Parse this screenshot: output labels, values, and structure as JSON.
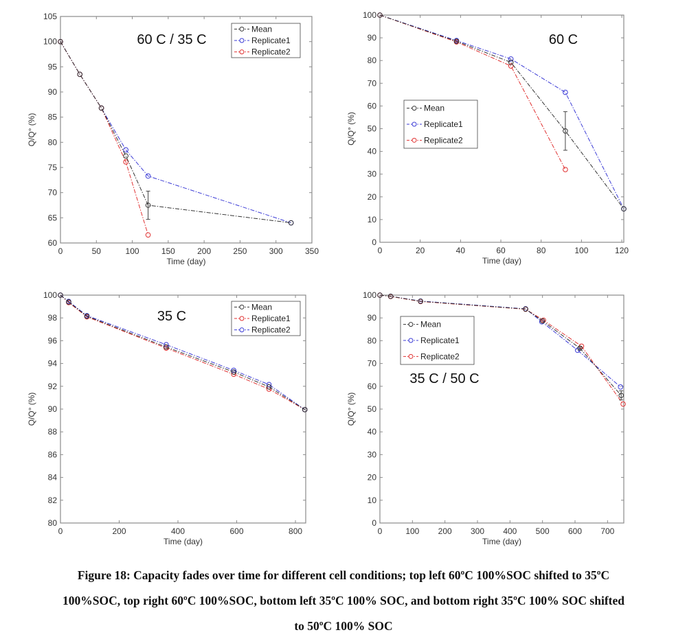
{
  "chart_data": [
    {
      "type": "line",
      "panel": "top-left",
      "title": "60 C / 35 C",
      "xlabel": "Time (day)",
      "ylabel": "Q/Q° (%)",
      "xlim": [
        0,
        350
      ],
      "ylim": [
        60,
        105
      ],
      "xticks": [
        0,
        50,
        100,
        150,
        200,
        250,
        300,
        350
      ],
      "yticks": [
        60,
        65,
        70,
        75,
        80,
        85,
        90,
        95,
        100,
        105
      ],
      "legend_position": "top-right",
      "series": [
        {
          "name": "Mean",
          "color": "#333333",
          "x": [
            0,
            27,
            57,
            91,
            122,
            321
          ],
          "y": [
            100,
            93.5,
            86.8,
            77.3,
            67.5,
            64.0
          ],
          "err": [
            0,
            0,
            0,
            0.3,
            2.8,
            0
          ]
        },
        {
          "name": "Replicate1",
          "color": "#3b3bd6",
          "x": [
            0,
            27,
            57,
            91,
            122,
            321
          ],
          "y": [
            100,
            93.5,
            86.8,
            78.5,
            73.3,
            64.0
          ]
        },
        {
          "name": "Replicate2",
          "color": "#e03030",
          "x": [
            0,
            27,
            57,
            91,
            122
          ],
          "y": [
            100,
            93.5,
            86.8,
            76.1,
            61.6
          ]
        }
      ]
    },
    {
      "type": "line",
      "panel": "top-right",
      "title": "60 C",
      "xlabel": "Time (day)",
      "ylabel": "Q/Q° (%)",
      "xlim": [
        0,
        121
      ],
      "ylim": [
        0,
        100
      ],
      "xticks": [
        0,
        20,
        40,
        60,
        80,
        100,
        120
      ],
      "yticks": [
        0,
        10,
        20,
        30,
        40,
        50,
        60,
        70,
        80,
        90,
        100
      ],
      "legend_position": "middle-left",
      "series": [
        {
          "name": "Mean",
          "color": "#333333",
          "x": [
            0,
            38,
            65,
            92,
            121
          ],
          "y": [
            100,
            88.5,
            79.2,
            49.0,
            14.7
          ],
          "err": [
            0,
            0,
            0,
            8.5,
            0
          ]
        },
        {
          "name": "Replicate1",
          "color": "#3b3bd6",
          "x": [
            0,
            38,
            65,
            92,
            121
          ],
          "y": [
            100,
            88.8,
            80.7,
            66.0,
            14.7
          ]
        },
        {
          "name": "Replicate2",
          "color": "#e03030",
          "x": [
            0,
            38,
            65,
            92
          ],
          "y": [
            100,
            88.2,
            77.6,
            32.0
          ]
        }
      ]
    },
    {
      "type": "line",
      "panel": "bottom-left",
      "title": "35 C",
      "xlabel": "Time (day)",
      "ylabel": "Q/Q° (%)",
      "xlim": [
        0,
        835
      ],
      "ylim": [
        80,
        100
      ],
      "xticks": [
        0,
        200,
        400,
        600,
        800
      ],
      "yticks": [
        80,
        82,
        84,
        86,
        88,
        90,
        92,
        94,
        96,
        98,
        100
      ],
      "legend_position": "top-right",
      "series": [
        {
          "name": "Mean",
          "color": "#333333",
          "x": [
            0,
            28,
            90,
            360,
            590,
            710,
            832
          ],
          "y": [
            100,
            99.4,
            98.15,
            95.45,
            93.25,
            91.95,
            89.95
          ]
        },
        {
          "name": "Replicate1",
          "color": "#e03030",
          "x": [
            0,
            28,
            90,
            360,
            590,
            710,
            832
          ],
          "y": [
            100,
            99.35,
            98.1,
            95.35,
            93.05,
            91.75,
            89.95
          ]
        },
        {
          "name": "Replicate2",
          "color": "#3b3bd6",
          "x": [
            0,
            28,
            90,
            360,
            590,
            710,
            832
          ],
          "y": [
            100,
            99.45,
            98.2,
            95.65,
            93.4,
            92.15,
            89.95
          ]
        }
      ]
    },
    {
      "type": "line",
      "panel": "bottom-right",
      "title": "35 C / 50 C",
      "xlabel": "Time (day)",
      "ylabel": "Q/Q° (%)",
      "xlim": [
        0,
        750
      ],
      "ylim": [
        0,
        100
      ],
      "xticks": [
        0,
        100,
        200,
        300,
        400,
        500,
        600,
        700
      ],
      "yticks": [
        0,
        10,
        20,
        30,
        40,
        50,
        60,
        70,
        80,
        90,
        100
      ],
      "legend_position": "top-left",
      "series": [
        {
          "name": "Mean",
          "color": "#333333",
          "x": [
            0,
            33,
            125,
            448,
            500,
            615,
            742
          ],
          "y": [
            100,
            99.5,
            97.3,
            93.9,
            88.7,
            76.7,
            56.0
          ],
          "err": [
            0,
            0,
            0,
            0,
            0,
            0.5,
            2.0
          ]
        },
        {
          "name": "Replicate1",
          "color": "#3b3bd6",
          "x": [
            0,
            33,
            125,
            448,
            498,
            608,
            740
          ],
          "y": [
            100,
            99.5,
            97.4,
            94.0,
            88.3,
            75.8,
            59.7
          ]
        },
        {
          "name": "Replicate2",
          "color": "#e03030",
          "x": [
            0,
            33,
            125,
            448,
            503,
            620,
            748
          ],
          "y": [
            100,
            99.4,
            97.2,
            93.8,
            89.0,
            77.6,
            52.2
          ]
        }
      ]
    }
  ],
  "caption": {
    "lines": [
      "Figure 18: Capacity fades over time for different cell conditions; top left 60ºC 100%SOC shifted to 35ºC",
      "100%SOC, top right 60ºC 100%SOC, bottom left 35ºC 100% SOC, and bottom right 35ºC 100% SOC shifted",
      "to 50ºC 100% SOC"
    ]
  }
}
